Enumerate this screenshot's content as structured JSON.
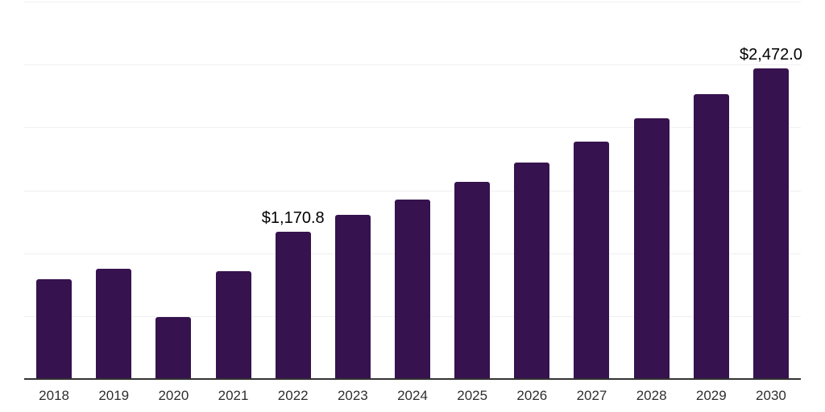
{
  "chart_data": {
    "type": "bar",
    "title": "",
    "xlabel": "",
    "ylabel": "",
    "categories": [
      "2018",
      "2019",
      "2020",
      "2021",
      "2022",
      "2023",
      "2024",
      "2025",
      "2026",
      "2027",
      "2028",
      "2029",
      "2030"
    ],
    "values": [
      795,
      874,
      490,
      859,
      1170.8,
      1303,
      1424,
      1567,
      1719,
      1887,
      2070,
      2266,
      2472
    ],
    "data_labels": {
      "2022": "$1,170.8",
      "2030": "$2,472.0"
    },
    "ylim": [
      0,
      3000
    ],
    "gridline_step": 500,
    "grid": true,
    "legend": false,
    "colors": {
      "bar": "#36124F",
      "gridline": "#F0F0F0",
      "axis": "#333333",
      "data_label": "#000000",
      "tick_label": "#2E2E2E"
    }
  }
}
